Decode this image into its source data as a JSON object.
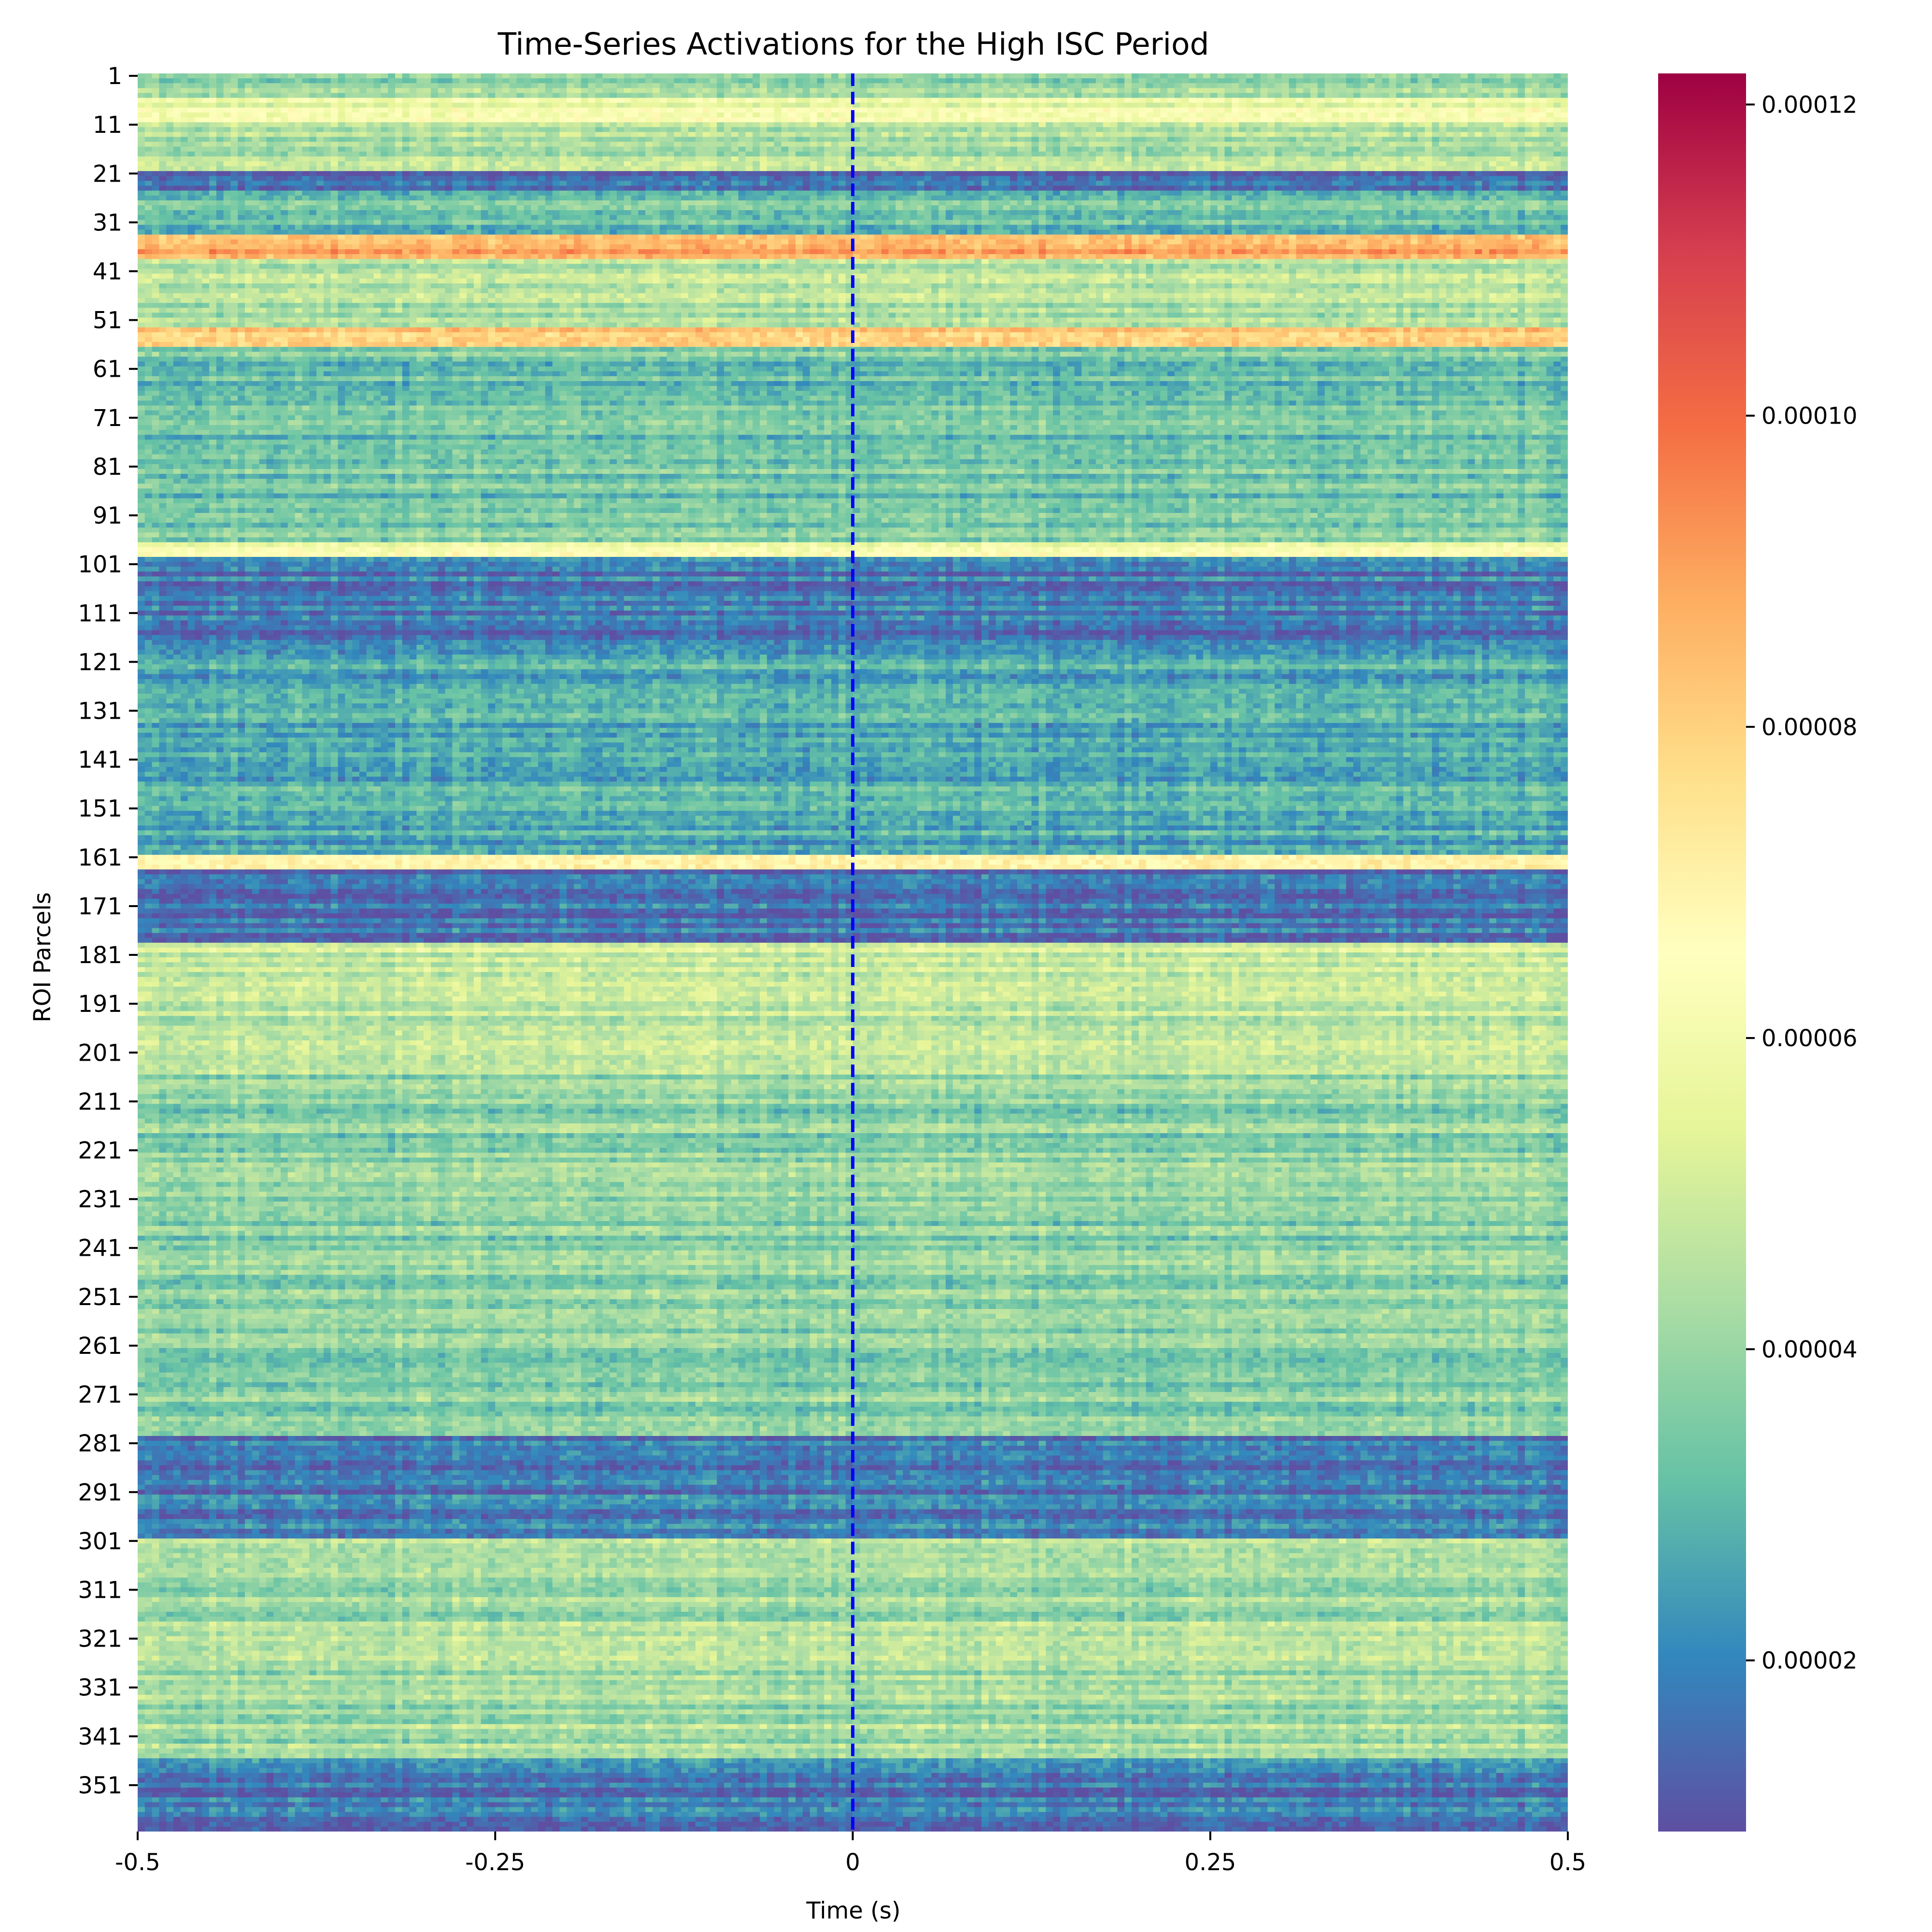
{
  "chart_data": {
    "type": "heatmap",
    "title": "Time-Series Activations for the High ISC Period",
    "xlabel": "Time (s)",
    "ylabel": "ROI Parcels",
    "x_range": [
      -0.5,
      0.5
    ],
    "x_ticks": [
      -0.5,
      -0.25,
      0,
      0.25,
      0.5
    ],
    "x_tick_labels": [
      "-0.5",
      "-0.25",
      "0",
      "0.25",
      "0.5"
    ],
    "y_tick_labels": [
      "1",
      "11",
      "21",
      "31",
      "41",
      "51",
      "61",
      "71",
      "81",
      "91",
      "101",
      "111",
      "121",
      "131",
      "141",
      "151",
      "161",
      "171",
      "181",
      "191",
      "201",
      "211",
      "221",
      "231",
      "241",
      "251",
      "261",
      "271",
      "281",
      "291",
      "301",
      "311",
      "321",
      "331",
      "341",
      "351"
    ],
    "n_rows": 360,
    "n_time_bins": 200,
    "colormap": "Spectral_r",
    "colormap_stops": [
      "#5e4fa2",
      "#3288bd",
      "#66c2a5",
      "#abdda4",
      "#e6f598",
      "#ffffbf",
      "#fee08b",
      "#fdae61",
      "#f46d43",
      "#d53e4f",
      "#9e0142"
    ],
    "vmin": 9e-06,
    "vmax": 0.000122,
    "colorbar_ticks": [
      2e-05,
      4e-05,
      6e-05,
      8e-05,
      0.0001,
      0.00012
    ],
    "colorbar_tick_labels": [
      "0.00002",
      "0.00004",
      "0.00006",
      "0.00008",
      "0.00010",
      "0.00012"
    ],
    "marker_line": {
      "x": 0,
      "style": "dashed",
      "color": "#0000ff"
    },
    "row_profile_approx": [
      {
        "rows": [
          1,
          5
        ],
        "value": 3.8e-05
      },
      {
        "rows": [
          6,
          10
        ],
        "value": 5.8e-05
      },
      {
        "rows": [
          11,
          20
        ],
        "value": 4.4e-05
      },
      {
        "rows": [
          21,
          24
        ],
        "value": 1.6e-05
      },
      {
        "rows": [
          25,
          33
        ],
        "value": 3.2e-05
      },
      {
        "rows": [
          34,
          38
        ],
        "value": 8.6e-05
      },
      {
        "rows": [
          39,
          52
        ],
        "value": 4.5e-05
      },
      {
        "rows": [
          53,
          56
        ],
        "value": 8.2e-05
      },
      {
        "rows": [
          57,
          96
        ],
        "value": 3.4e-05
      },
      {
        "rows": [
          97,
          99
        ],
        "value": 6.2e-05
      },
      {
        "rows": [
          100,
          120
        ],
        "value": 1.8e-05
      },
      {
        "rows": [
          121,
          160
        ],
        "value": 2.8e-05
      },
      {
        "rows": [
          161,
          163
        ],
        "value": 7.5e-05
      },
      {
        "rows": [
          164,
          178
        ],
        "value": 1.6e-05
      },
      {
        "rows": [
          179,
          205
        ],
        "value": 4.8e-05
      },
      {
        "rows": [
          206,
          279
        ],
        "value": 3.8e-05
      },
      {
        "rows": [
          280,
          300
        ],
        "value": 1.8e-05
      },
      {
        "rows": [
          301,
          345
        ],
        "value": 4.2e-05
      },
      {
        "rows": [
          346,
          360
        ],
        "value": 1.8e-05
      }
    ]
  }
}
